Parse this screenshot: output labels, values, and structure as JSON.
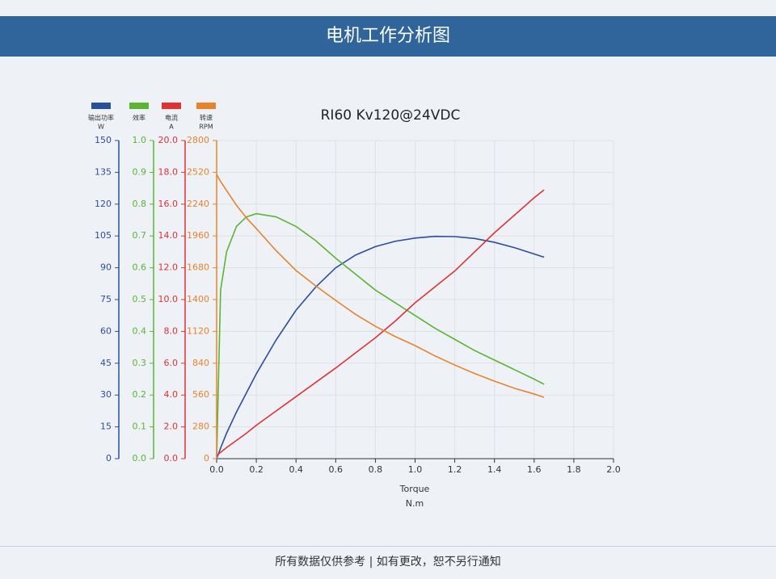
{
  "header": {
    "title": "电机工作分析图"
  },
  "chart_data": {
    "type": "line",
    "title": "RI60 Kv120@24VDC",
    "x": [
      0,
      0.02,
      0.05,
      0.1,
      0.15,
      0.2,
      0.3,
      0.4,
      0.5,
      0.6,
      0.7,
      0.8,
      0.9,
      1.0,
      1.1,
      1.2,
      1.3,
      1.4,
      1.5,
      1.6,
      1.65
    ],
    "xlim": [
      0,
      2
    ],
    "xticks": [
      {
        "value": 0,
        "label": "0.0"
      },
      0.2,
      0.4,
      0.6,
      0.8,
      {
        "value": 1,
        "label": "1.0"
      },
      1.2,
      1.4,
      1.6,
      1.8,
      {
        "value": 2,
        "label": "2.0"
      }
    ],
    "xlabel": "Torque",
    "xunit": "N.m",
    "grid": true,
    "series": [
      {
        "name": "输出功率",
        "unit": "W",
        "color": "#2a4e9e",
        "values": [
          0,
          5,
          12,
          22,
          31,
          40,
          56,
          70,
          81,
          90,
          96,
          100,
          102.5,
          104,
          104.8,
          104.7,
          103.8,
          102,
          99.5,
          96.5,
          95
        ],
        "ylim": [
          0,
          150
        ],
        "yticks": [
          0,
          15,
          30,
          45,
          60,
          75,
          90,
          105,
          120,
          135,
          150
        ]
      },
      {
        "name": "效率",
        "color": "#5ab532",
        "values": [
          0,
          0.53,
          0.65,
          0.73,
          0.76,
          0.77,
          0.76,
          0.73,
          0.685,
          0.63,
          0.58,
          0.53,
          0.49,
          0.45,
          0.41,
          0.375,
          0.34,
          0.31,
          0.28,
          0.25,
          0.234
        ],
        "ylim": [
          0,
          1
        ],
        "yticks": [
          {
            "value": 0,
            "label": "0.0"
          },
          0.1,
          0.2,
          0.3,
          0.4,
          0.5,
          0.6,
          0.7,
          0.8,
          0.9,
          {
            "value": 1,
            "label": "1.0"
          }
        ]
      },
      {
        "name": "电流",
        "unit": "A",
        "color": "#e03232",
        "values": [
          0.2,
          0.4,
          0.7,
          1.15,
          1.6,
          2.1,
          3.0,
          3.9,
          4.8,
          5.7,
          6.65,
          7.6,
          8.65,
          9.8,
          10.8,
          11.8,
          13.0,
          14.2,
          15.3,
          16.4,
          16.9
        ],
        "ylim": [
          0,
          20
        ],
        "yticks": [
          {
            "value": 0,
            "label": "0.0"
          },
          {
            "value": 2,
            "label": "2.0"
          },
          {
            "value": 4,
            "label": "4.0"
          },
          {
            "value": 6,
            "label": "6.0"
          },
          {
            "value": 8,
            "label": "8.0"
          },
          {
            "value": 10,
            "label": "10.0"
          },
          {
            "value": 12,
            "label": "12.0"
          },
          {
            "value": 14,
            "label": "14.0"
          },
          {
            "value": 16,
            "label": "16.0"
          },
          {
            "value": 18,
            "label": "18.0"
          },
          {
            "value": 20,
            "label": "20.0"
          }
        ]
      },
      {
        "name": "转速",
        "unit": "RPM",
        "color": "#e8832a",
        "values": [
          2500,
          2440,
          2360,
          2230,
          2120,
          2025,
          1830,
          1656,
          1520,
          1393,
          1270,
          1165,
          1075,
          995,
          905,
          824,
          750,
          682,
          620,
          569,
          540
        ],
        "ylim": [
          0,
          2800
        ],
        "yticks": [
          0,
          280,
          560,
          840,
          1120,
          1400,
          1680,
          1960,
          2240,
          2520,
          2800
        ]
      }
    ]
  },
  "footer": {
    "text": "所有数据仅供参考 | 如有更改，恕不另行通知"
  }
}
